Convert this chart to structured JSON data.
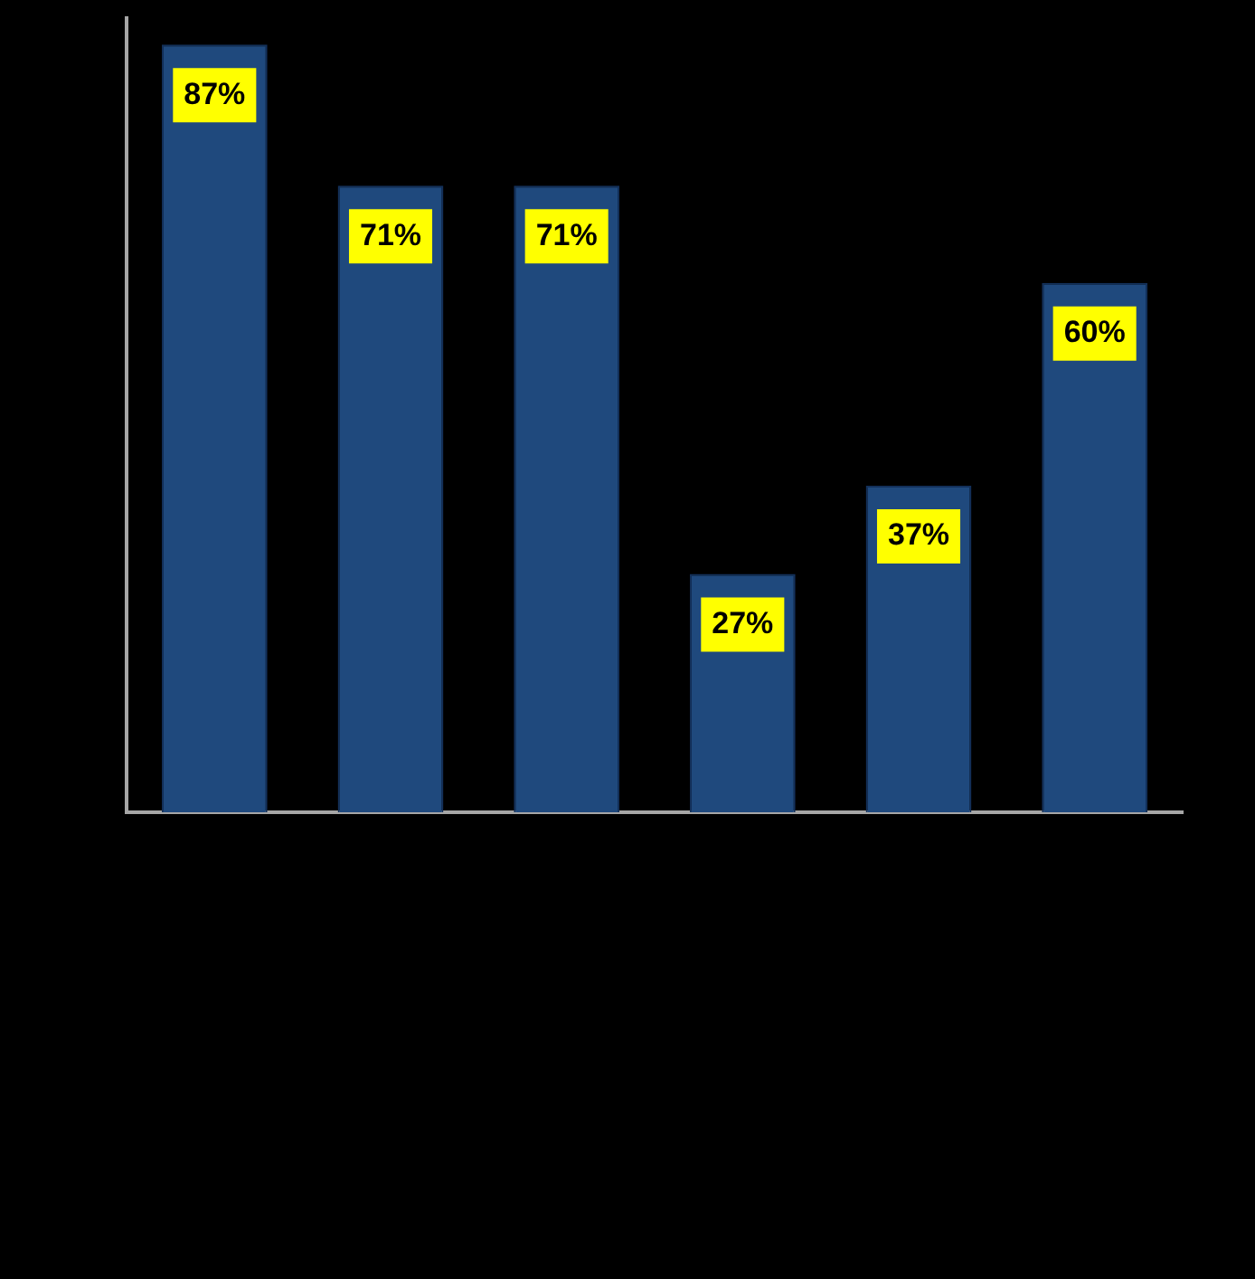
{
  "chart_data": {
    "type": "bar",
    "categories": [
      null,
      null,
      null,
      null,
      null,
      null
    ],
    "values": [
      87,
      71,
      71,
      27,
      37,
      60
    ],
    "value_labels": [
      "87%",
      "71%",
      "71%",
      "27%",
      "37%",
      "60%"
    ],
    "color": "#1f497d",
    "grid": false,
    "legend": false
  }
}
